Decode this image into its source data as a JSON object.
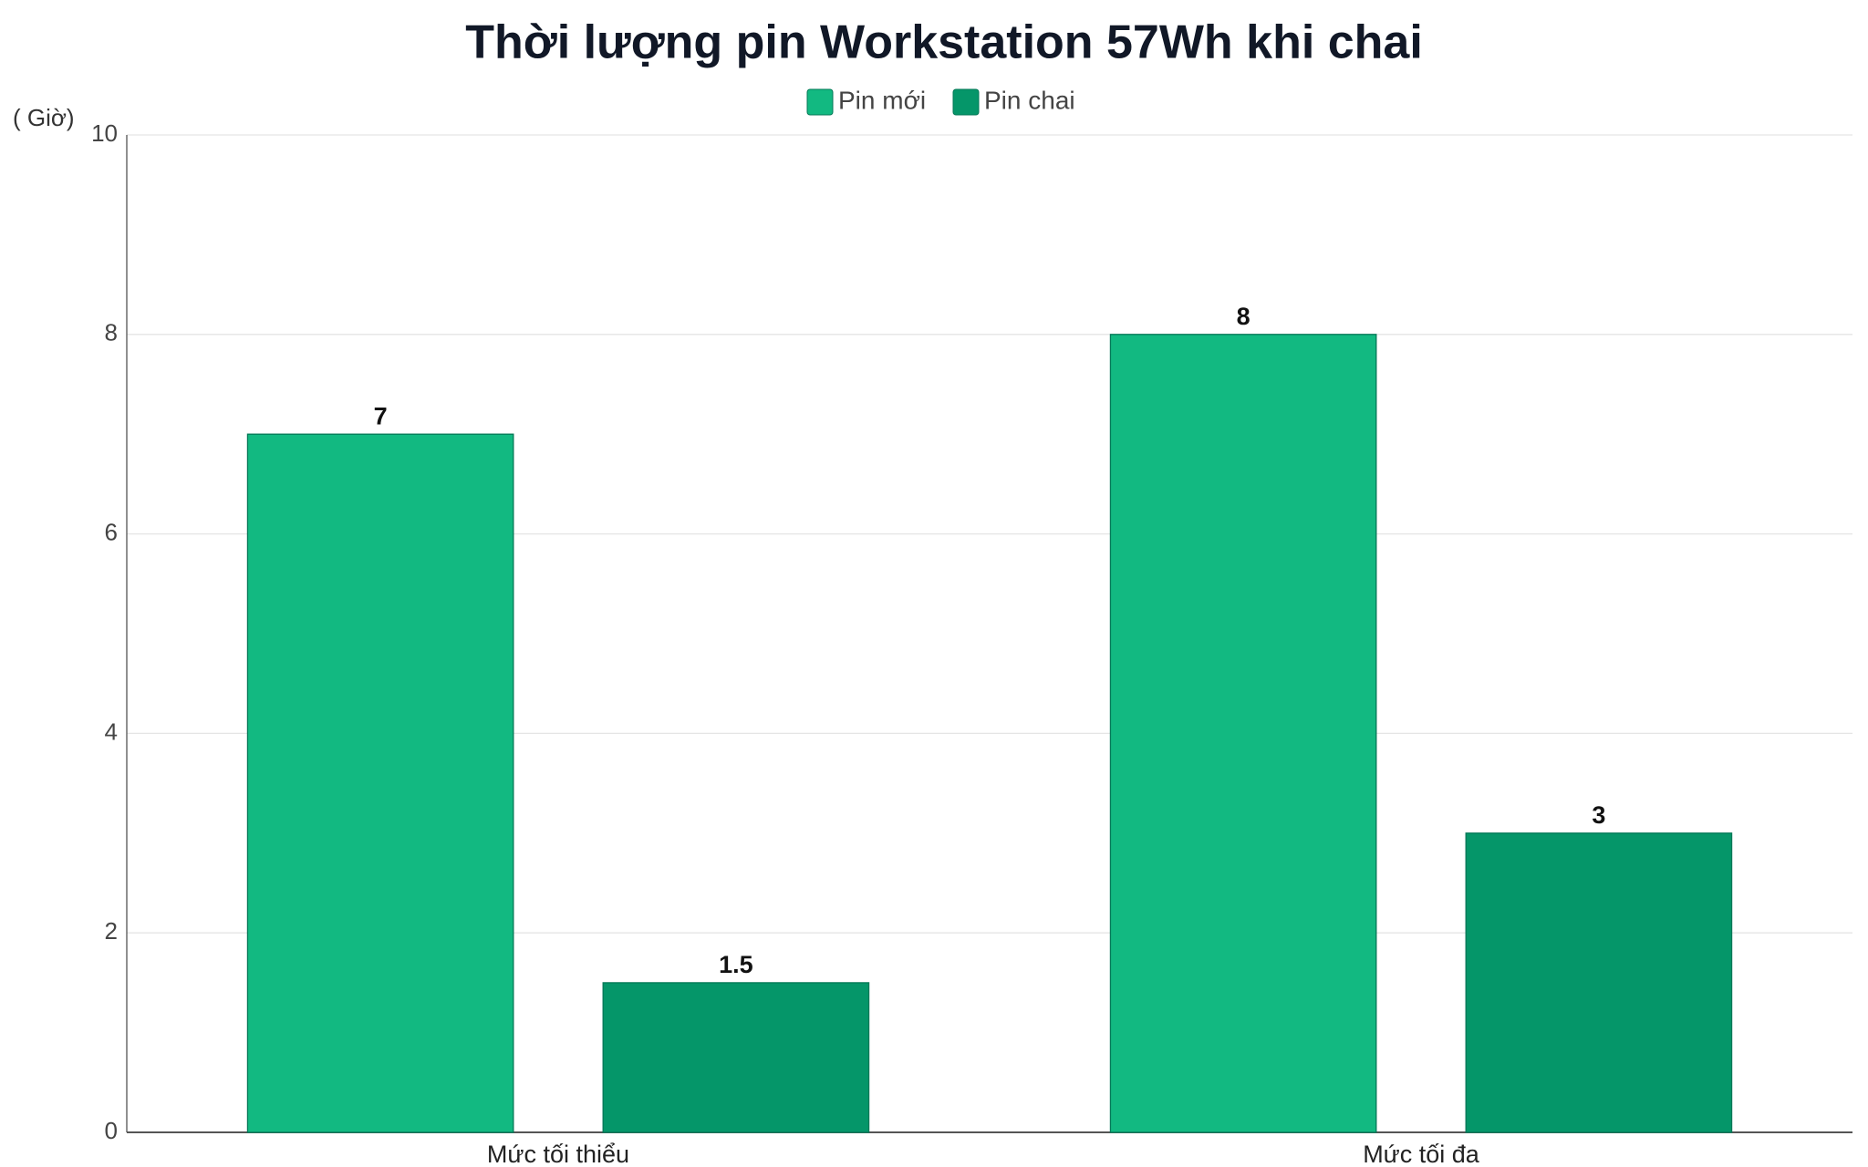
{
  "chart_data": {
    "type": "bar",
    "title": "Thời lượng pin Workstation 57Wh khi chai",
    "y_label": "( Giờ)",
    "categories": [
      "Mức tối thiểu",
      "Mức tối đa"
    ],
    "series": [
      {
        "name": "Pin mới",
        "color": "#12b981",
        "values": [
          7,
          8
        ]
      },
      {
        "name": "Pin chai",
        "color": "#059669",
        "values": [
          1.5,
          3
        ]
      }
    ],
    "ylim": [
      0,
      10
    ],
    "yticks": [
      0,
      2,
      4,
      6,
      8,
      10
    ],
    "grid": true,
    "legend": "top"
  }
}
